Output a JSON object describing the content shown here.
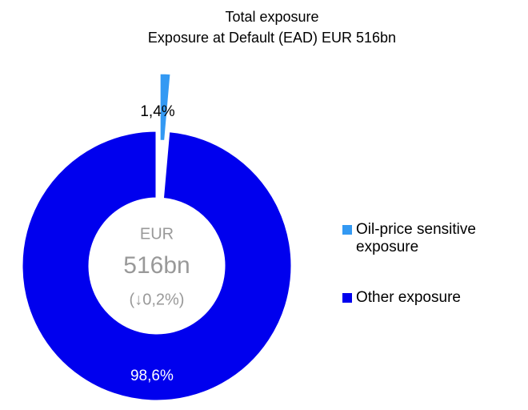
{
  "chart_data": {
    "type": "donut",
    "title": "Total exposure",
    "subtitle": "Exposure at Default (EAD) EUR 516bn",
    "categories": [
      "Oil-price sensitive exposure",
      "Other exposure"
    ],
    "values": [
      1.4,
      98.6
    ],
    "value_labels": [
      "1,4%",
      "98,6%"
    ],
    "colors": [
      "#3399f3",
      "#0000ee"
    ],
    "center_label": [
      "EUR",
      "516bn",
      "(↓0,2%)"
    ]
  }
}
